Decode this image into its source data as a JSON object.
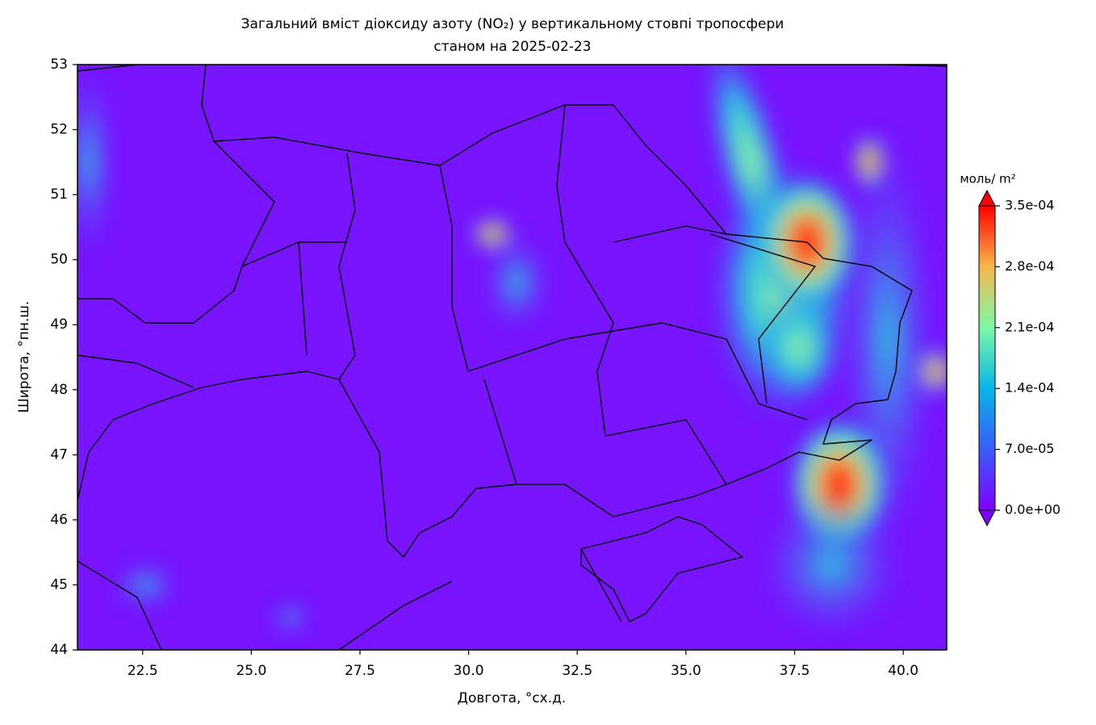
{
  "chart_data": {
    "type": "heatmap",
    "title": [
      "Загальний вміст діоксиду азоту (NO₂) у вертикальному стовпі тропосфери",
      "станом на 2025-02-23"
    ],
    "xlabel": "Довгота, °сх.д.",
    "ylabel": "Широта, °пн.ш.",
    "xlim": [
      21,
      41
    ],
    "ylim": [
      44,
      53
    ],
    "xticks": [
      22.5,
      {
        "value": 25,
        "label": "25.0"
      },
      27.5,
      {
        "value": 30,
        "label": "30.0"
      },
      32.5,
      {
        "value": 35,
        "label": "35.0"
      },
      37.5,
      {
        "value": 40,
        "label": "40.0"
      }
    ],
    "yticks": [
      44,
      45,
      46,
      47,
      48,
      49,
      50,
      51,
      52,
      53
    ],
    "colorbar_label": "моль/ m²",
    "clim": [
      0,
      0.00035
    ],
    "colorbar_ticks": [
      {
        "value": 0,
        "label": "0.0e+00"
      },
      {
        "value": 7e-05,
        "label": "7.0e-05"
      },
      {
        "value": 0.00014,
        "label": "1.4e-04"
      },
      {
        "value": 0.00021,
        "label": "2.1e-04"
      },
      {
        "value": 0.00028,
        "label": "2.8e-04"
      },
      {
        "value": 0.00035,
        "label": "3.5e-04"
      }
    ],
    "colormap": "rainbow"
  }
}
